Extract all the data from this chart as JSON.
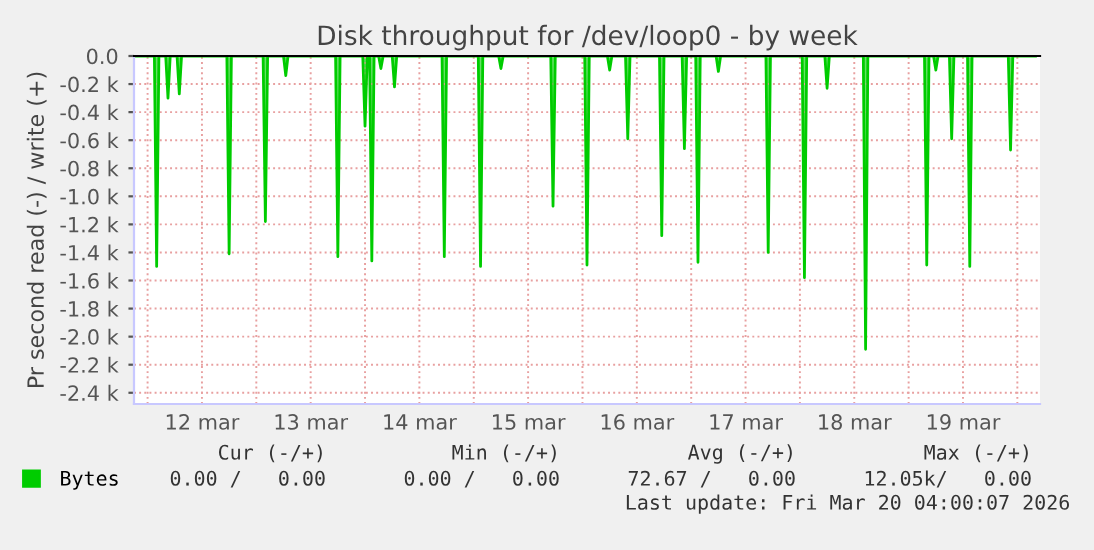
{
  "chart_data": {
    "type": "area",
    "title": "Disk throughput for /dev/loop0 - by week",
    "ylabel": "Pr second read (-) / write (+)",
    "x": [
      "2026-03-11T21:00",
      "2026-03-12T01:30",
      "2026-03-12T02:00",
      "2026-03-12T02:30",
      "2026-03-12T04:00",
      "2026-03-12T04:30",
      "2026-03-12T05:00",
      "2026-03-12T06:30",
      "2026-03-12T07:00",
      "2026-03-12T07:30",
      "2026-03-12T17:30",
      "2026-03-12T18:00",
      "2026-03-12T18:30",
      "2026-03-13T01:30",
      "2026-03-13T02:00",
      "2026-03-13T02:30",
      "2026-03-13T06:00",
      "2026-03-13T06:30",
      "2026-03-13T07:00",
      "2026-03-13T17:30",
      "2026-03-13T18:00",
      "2026-03-13T18:30",
      "2026-03-13T23:30",
      "2026-03-14T00:00",
      "2026-03-14T00:30",
      "2026-03-14T01:00",
      "2026-03-14T01:30",
      "2026-03-14T02:00",
      "2026-03-14T03:00",
      "2026-03-14T03:30",
      "2026-03-14T04:00",
      "2026-03-14T06:00",
      "2026-03-14T06:30",
      "2026-03-14T07:00",
      "2026-03-14T17:00",
      "2026-03-14T17:30",
      "2026-03-14T18:00",
      "2026-03-15T01:00",
      "2026-03-15T01:30",
      "2026-03-15T02:00",
      "2026-03-15T05:30",
      "2026-03-15T06:00",
      "2026-03-15T06:30",
      "2026-03-15T17:00",
      "2026-03-15T17:30",
      "2026-03-15T18:00",
      "2026-03-16T00:30",
      "2026-03-16T01:00",
      "2026-03-16T01:30",
      "2026-03-16T05:30",
      "2026-03-16T06:00",
      "2026-03-16T06:30",
      "2026-03-16T09:30",
      "2026-03-16T10:00",
      "2026-03-16T10:30",
      "2026-03-16T17:00",
      "2026-03-16T17:30",
      "2026-03-16T18:00",
      "2026-03-16T22:00",
      "2026-03-16T22:30",
      "2026-03-16T23:00",
      "2026-03-17T01:00",
      "2026-03-17T01:30",
      "2026-03-17T02:00",
      "2026-03-17T05:30",
      "2026-03-17T06:00",
      "2026-03-17T06:30",
      "2026-03-17T16:30",
      "2026-03-17T17:00",
      "2026-03-17T17:30",
      "2026-03-18T00:30",
      "2026-03-18T01:00",
      "2026-03-18T01:30",
      "2026-03-18T05:30",
      "2026-03-18T06:00",
      "2026-03-18T06:30",
      "2026-03-18T14:00",
      "2026-03-18T14:30",
      "2026-03-18T15:00",
      "2026-03-19T03:30",
      "2026-03-19T04:00",
      "2026-03-19T04:30",
      "2026-03-19T05:30",
      "2026-03-19T06:00",
      "2026-03-19T06:30",
      "2026-03-19T09:00",
      "2026-03-19T09:30",
      "2026-03-19T10:00",
      "2026-03-19T13:00",
      "2026-03-19T13:30",
      "2026-03-19T14:00",
      "2026-03-19T22:00",
      "2026-03-19T22:30",
      "2026-03-19T23:00",
      "2026-03-20T04:00"
    ],
    "series": [
      {
        "name": "Bytes",
        "color": "#00cc00",
        "values": [
          0,
          0,
          -1500,
          0,
          0,
          -300,
          0,
          0,
          -270,
          0,
          0,
          -1410,
          0,
          0,
          -1180,
          0,
          0,
          -140,
          0,
          0,
          -1430,
          0,
          0,
          -500,
          0,
          0,
          -1460,
          0,
          0,
          -90,
          0,
          0,
          -220,
          0,
          0,
          -1430,
          0,
          0,
          -1500,
          0,
          0,
          -90,
          0,
          0,
          -1070,
          0,
          0,
          -1490,
          0,
          0,
          -100,
          0,
          0,
          -590,
          0,
          0,
          -1280,
          0,
          0,
          -660,
          0,
          0,
          -1470,
          0,
          0,
          -110,
          0,
          0,
          -1400,
          0,
          0,
          -1580,
          0,
          0,
          -230,
          0,
          0,
          -2090,
          0,
          0,
          -1490,
          0,
          0,
          -100,
          0,
          0,
          -590,
          0,
          0,
          -1500,
          0,
          0,
          -670,
          0,
          0
        ]
      }
    ],
    "xlim": [
      "2026-03-11T21:00",
      "2026-03-20T05:00"
    ],
    "xticks": [
      {
        "value": "2026-03-12T00:00",
        "label": null
      },
      {
        "value": "2026-03-12T12:00",
        "label": "12 mar"
      },
      {
        "value": "2026-03-13T00:00",
        "label": null
      },
      {
        "value": "2026-03-13T12:00",
        "label": "13 mar"
      },
      {
        "value": "2026-03-14T00:00",
        "label": null
      },
      {
        "value": "2026-03-14T12:00",
        "label": "14 mar"
      },
      {
        "value": "2026-03-15T00:00",
        "label": null
      },
      {
        "value": "2026-03-15T12:00",
        "label": "15 mar"
      },
      {
        "value": "2026-03-16T00:00",
        "label": null
      },
      {
        "value": "2026-03-16T12:00",
        "label": "16 mar"
      },
      {
        "value": "2026-03-17T00:00",
        "label": null
      },
      {
        "value": "2026-03-17T12:00",
        "label": "17 mar"
      },
      {
        "value": "2026-03-18T00:00",
        "label": null
      },
      {
        "value": "2026-03-18T12:00",
        "label": "18 mar"
      },
      {
        "value": "2026-03-19T00:00",
        "label": null
      },
      {
        "value": "2026-03-19T12:00",
        "label": "19 mar"
      },
      {
        "value": "2026-03-20T00:00",
        "label": null
      }
    ],
    "ylim": [
      -2480,
      0
    ],
    "yticks": [
      {
        "value": 0,
        "label": "0.0"
      },
      {
        "value": -200,
        "label": "-0.2 k"
      },
      {
        "value": -400,
        "label": "-0.4 k"
      },
      {
        "value": -600,
        "label": "-0.6 k"
      },
      {
        "value": -800,
        "label": "-0.8 k"
      },
      {
        "value": -1000,
        "label": "-1.0 k"
      },
      {
        "value": -1200,
        "label": "-1.2 k"
      },
      {
        "value": -1400,
        "label": "-1.4 k"
      },
      {
        "value": -1600,
        "label": "-1.6 k"
      },
      {
        "value": -1800,
        "label": "-1.8 k"
      },
      {
        "value": -2000,
        "label": "-2.0 k"
      },
      {
        "value": -2200,
        "label": "-2.2 k"
      },
      {
        "value": -2400,
        "label": "-2.4 k"
      }
    ],
    "grid": true,
    "legend": "bottom left",
    "annotations": [
      "Cur (-/+)",
      "Min (-/+)",
      "Avg (-/+)",
      "Max (-/+)",
      "0.00 /   0.00",
      "0.00 /   0.00",
      "72.67 /   0.00",
      "12.05k/   0.00",
      "Last update: Fri Mar 20 04:00:07 2026"
    ]
  }
}
